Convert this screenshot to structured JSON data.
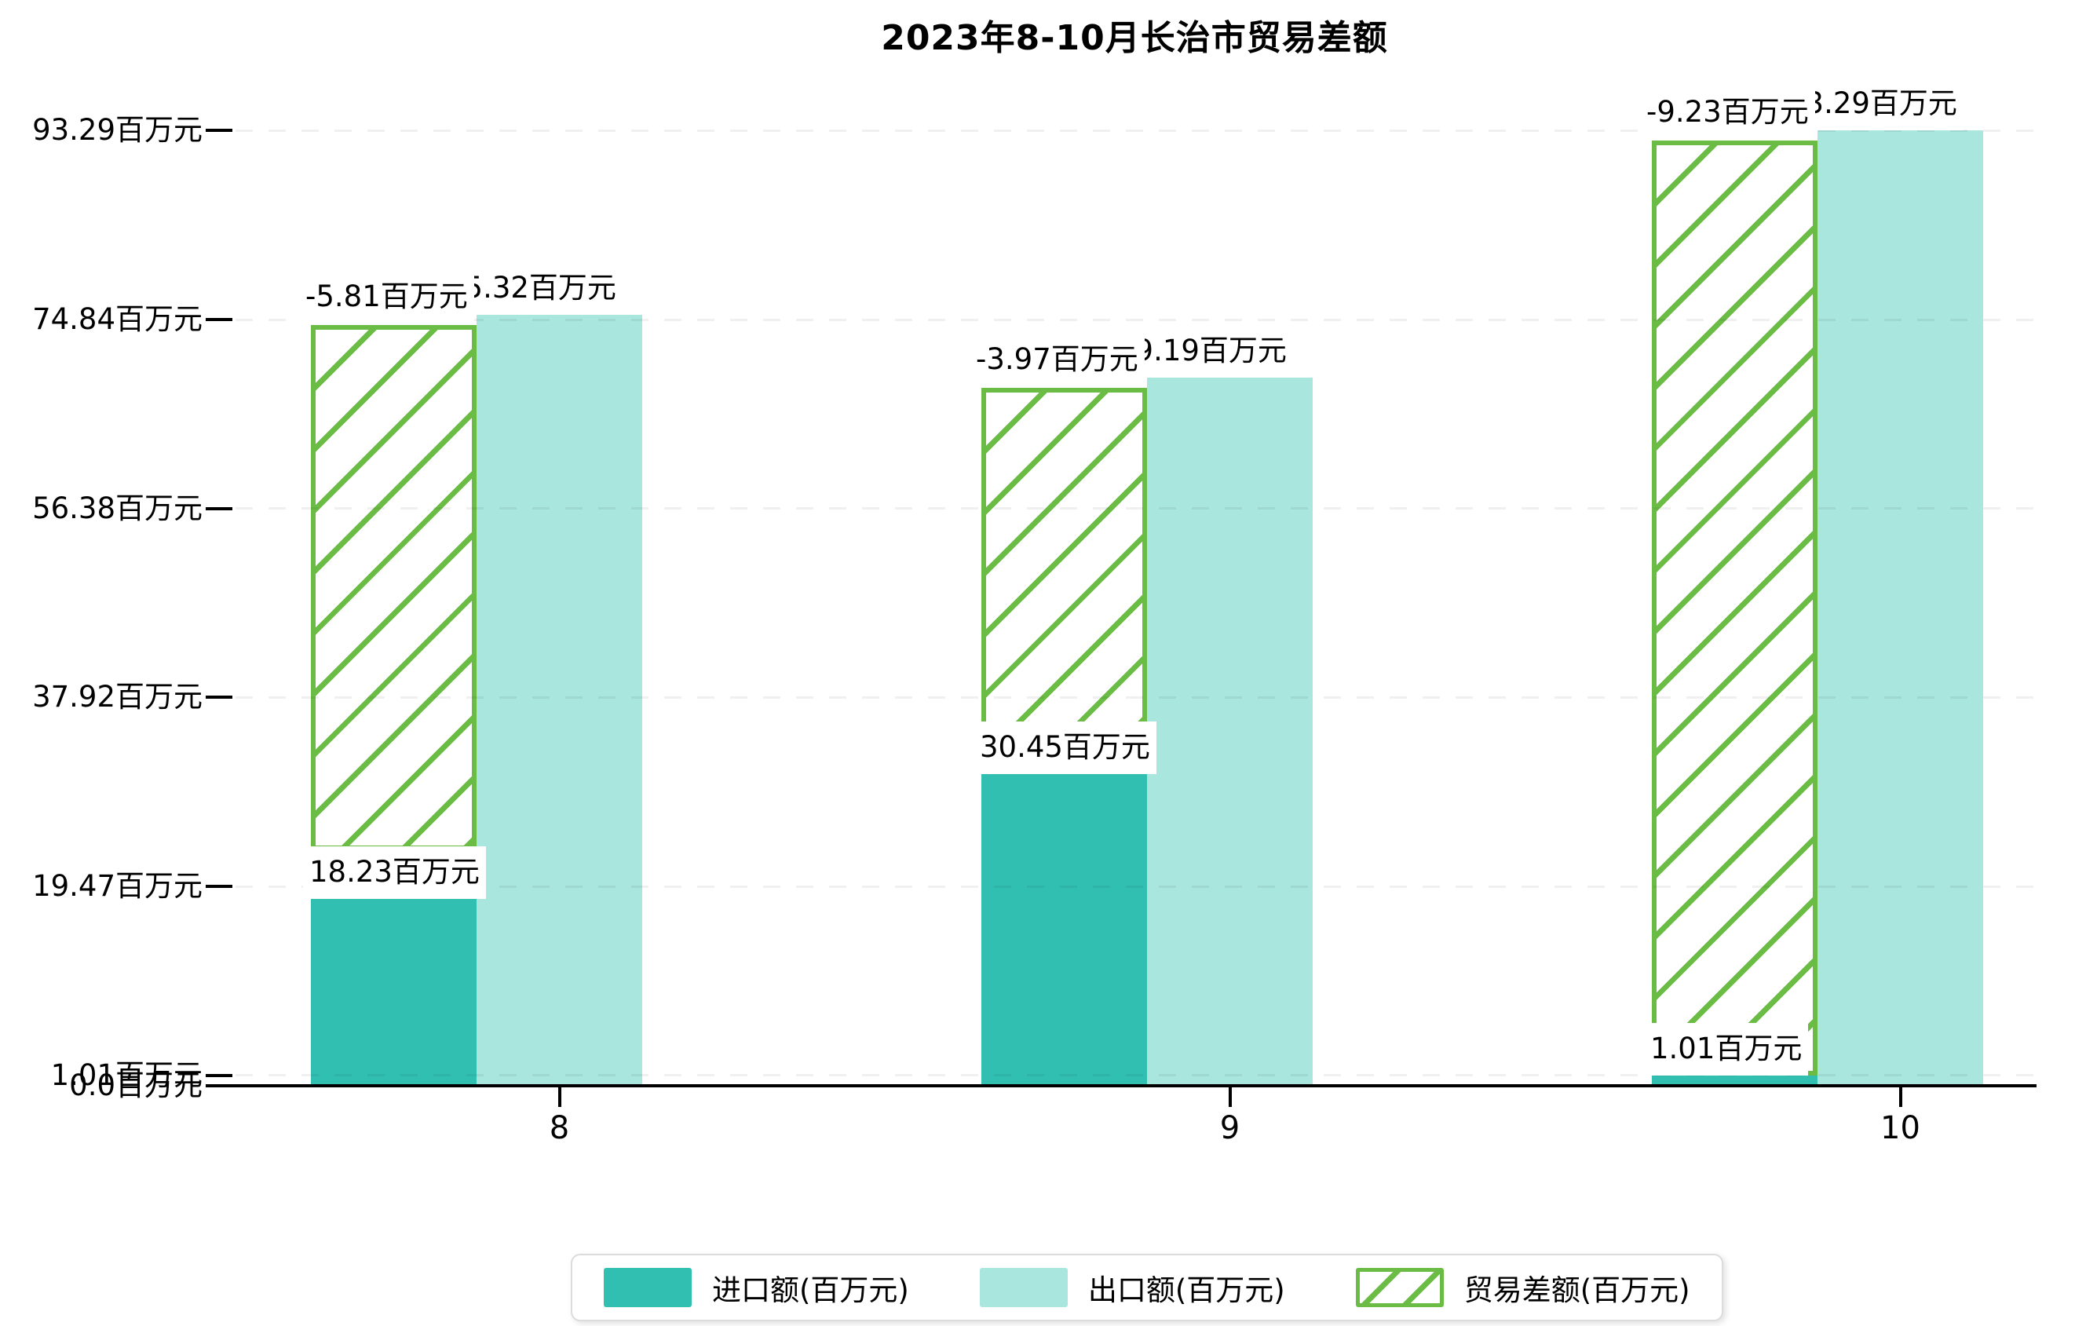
{
  "title": "2023年8-10月长治市贸易差额",
  "y_axis": {
    "tick_labels": [
      "93.29百万元",
      "74.84百万元",
      "56.38百万元",
      "37.92百万元",
      "19.47百万元",
      "1.01百万元",
      "0.0百万元"
    ],
    "tick_values": [
      93.29,
      74.84,
      56.38,
      37.92,
      19.47,
      1.01,
      0.0
    ]
  },
  "x_axis": {
    "tick_labels": [
      "8",
      "9",
      "10"
    ]
  },
  "legend": {
    "items": [
      {
        "label": "进口额(百万元)",
        "swatch": "import-solid"
      },
      {
        "label": "出口额(百万元)",
        "swatch": "export-solid"
      },
      {
        "label": "贸易差额(百万元)",
        "swatch": "trade-diff-hatch"
      }
    ]
  },
  "colors": {
    "import_bar": "#31bfb2",
    "export_bar": "#a9e6de",
    "trade_diff_hatch": "#6abc45",
    "axis": "#000000",
    "gridline": "rgba(0,0,0,0.06)",
    "label_background": "#ffffff",
    "legend_border": "#dcdcdc"
  },
  "chart_data": {
    "type": "bar",
    "title": "2023年8-10月长治市贸易差额",
    "unit": "百万元",
    "categories": [
      "8",
      "9",
      "10"
    ],
    "series": [
      {
        "name": "进口额(百万元)",
        "role": "import",
        "values": [
          18.23,
          30.45,
          1.01
        ],
        "value_labels": [
          "18.23百万元",
          "30.45百万元",
          "1.01百万元"
        ]
      },
      {
        "name": "出口额(百万元)",
        "role": "export",
        "values": [
          75.32,
          69.19,
          93.29
        ],
        "value_labels": [
          "75.32百万元",
          "69.19百万元",
          "93.29百万元"
        ]
      },
      {
        "name": "贸易差额(百万元)",
        "role": "trade-diff",
        "values": [
          -5.81,
          -3.97,
          -9.23
        ],
        "value_labels": [
          "-5.81百万元",
          "-3.97百万元",
          "-9.23百万元"
        ],
        "bar_visual_spans": [
          [
            23.0,
            74.3
          ],
          [
            33.4,
            68.2
          ],
          [
            1.0,
            92.3
          ]
        ]
      }
    ],
    "ylim": [
      0,
      93.29
    ],
    "y_tick_values": [
      0.0,
      1.01,
      19.47,
      37.92,
      56.38,
      74.84,
      93.29
    ],
    "grid": true,
    "legend_position": "bottom"
  }
}
